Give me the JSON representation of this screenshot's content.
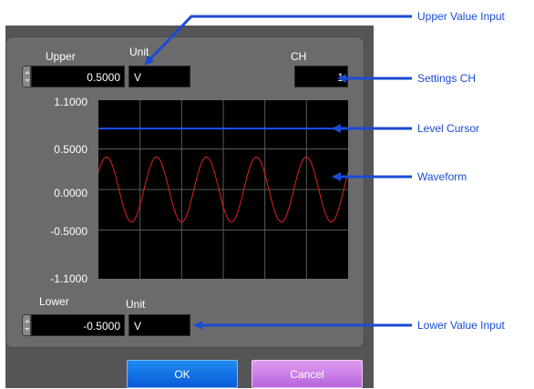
{
  "upper": {
    "label": "Upper",
    "value": "0.5000",
    "unit_label": "Unit",
    "unit_value": "V"
  },
  "ch": {
    "label": "CH",
    "value": "1"
  },
  "lower": {
    "label": "Lower",
    "value": "-0.5000",
    "unit_label": "Unit",
    "unit_value": "V"
  },
  "graph": {
    "y_ticks": [
      "1.1000",
      "0.5000",
      "0.0000",
      "-0.5000",
      "-1.1000"
    ],
    "y_min": -1.1,
    "y_max": 1.1,
    "level_cursor_value": 0.75,
    "wave_amplitude": 0.4,
    "wave_cycles": 5,
    "wave_color": "#e02020",
    "cursor_color": "#1e4bff",
    "grid_color": "#5a5a5a"
  },
  "buttons": {
    "ok": "OK",
    "cancel": "Cancel"
  },
  "callouts": {
    "upper_value_input": "Upper Value Input",
    "settings_ch": "Settings CH",
    "level_cursor": "Level Cursor",
    "waveform": "Waveform",
    "lower_value_input": "Lower Value Input"
  },
  "colors": {
    "callout": "#1a4bd6"
  }
}
